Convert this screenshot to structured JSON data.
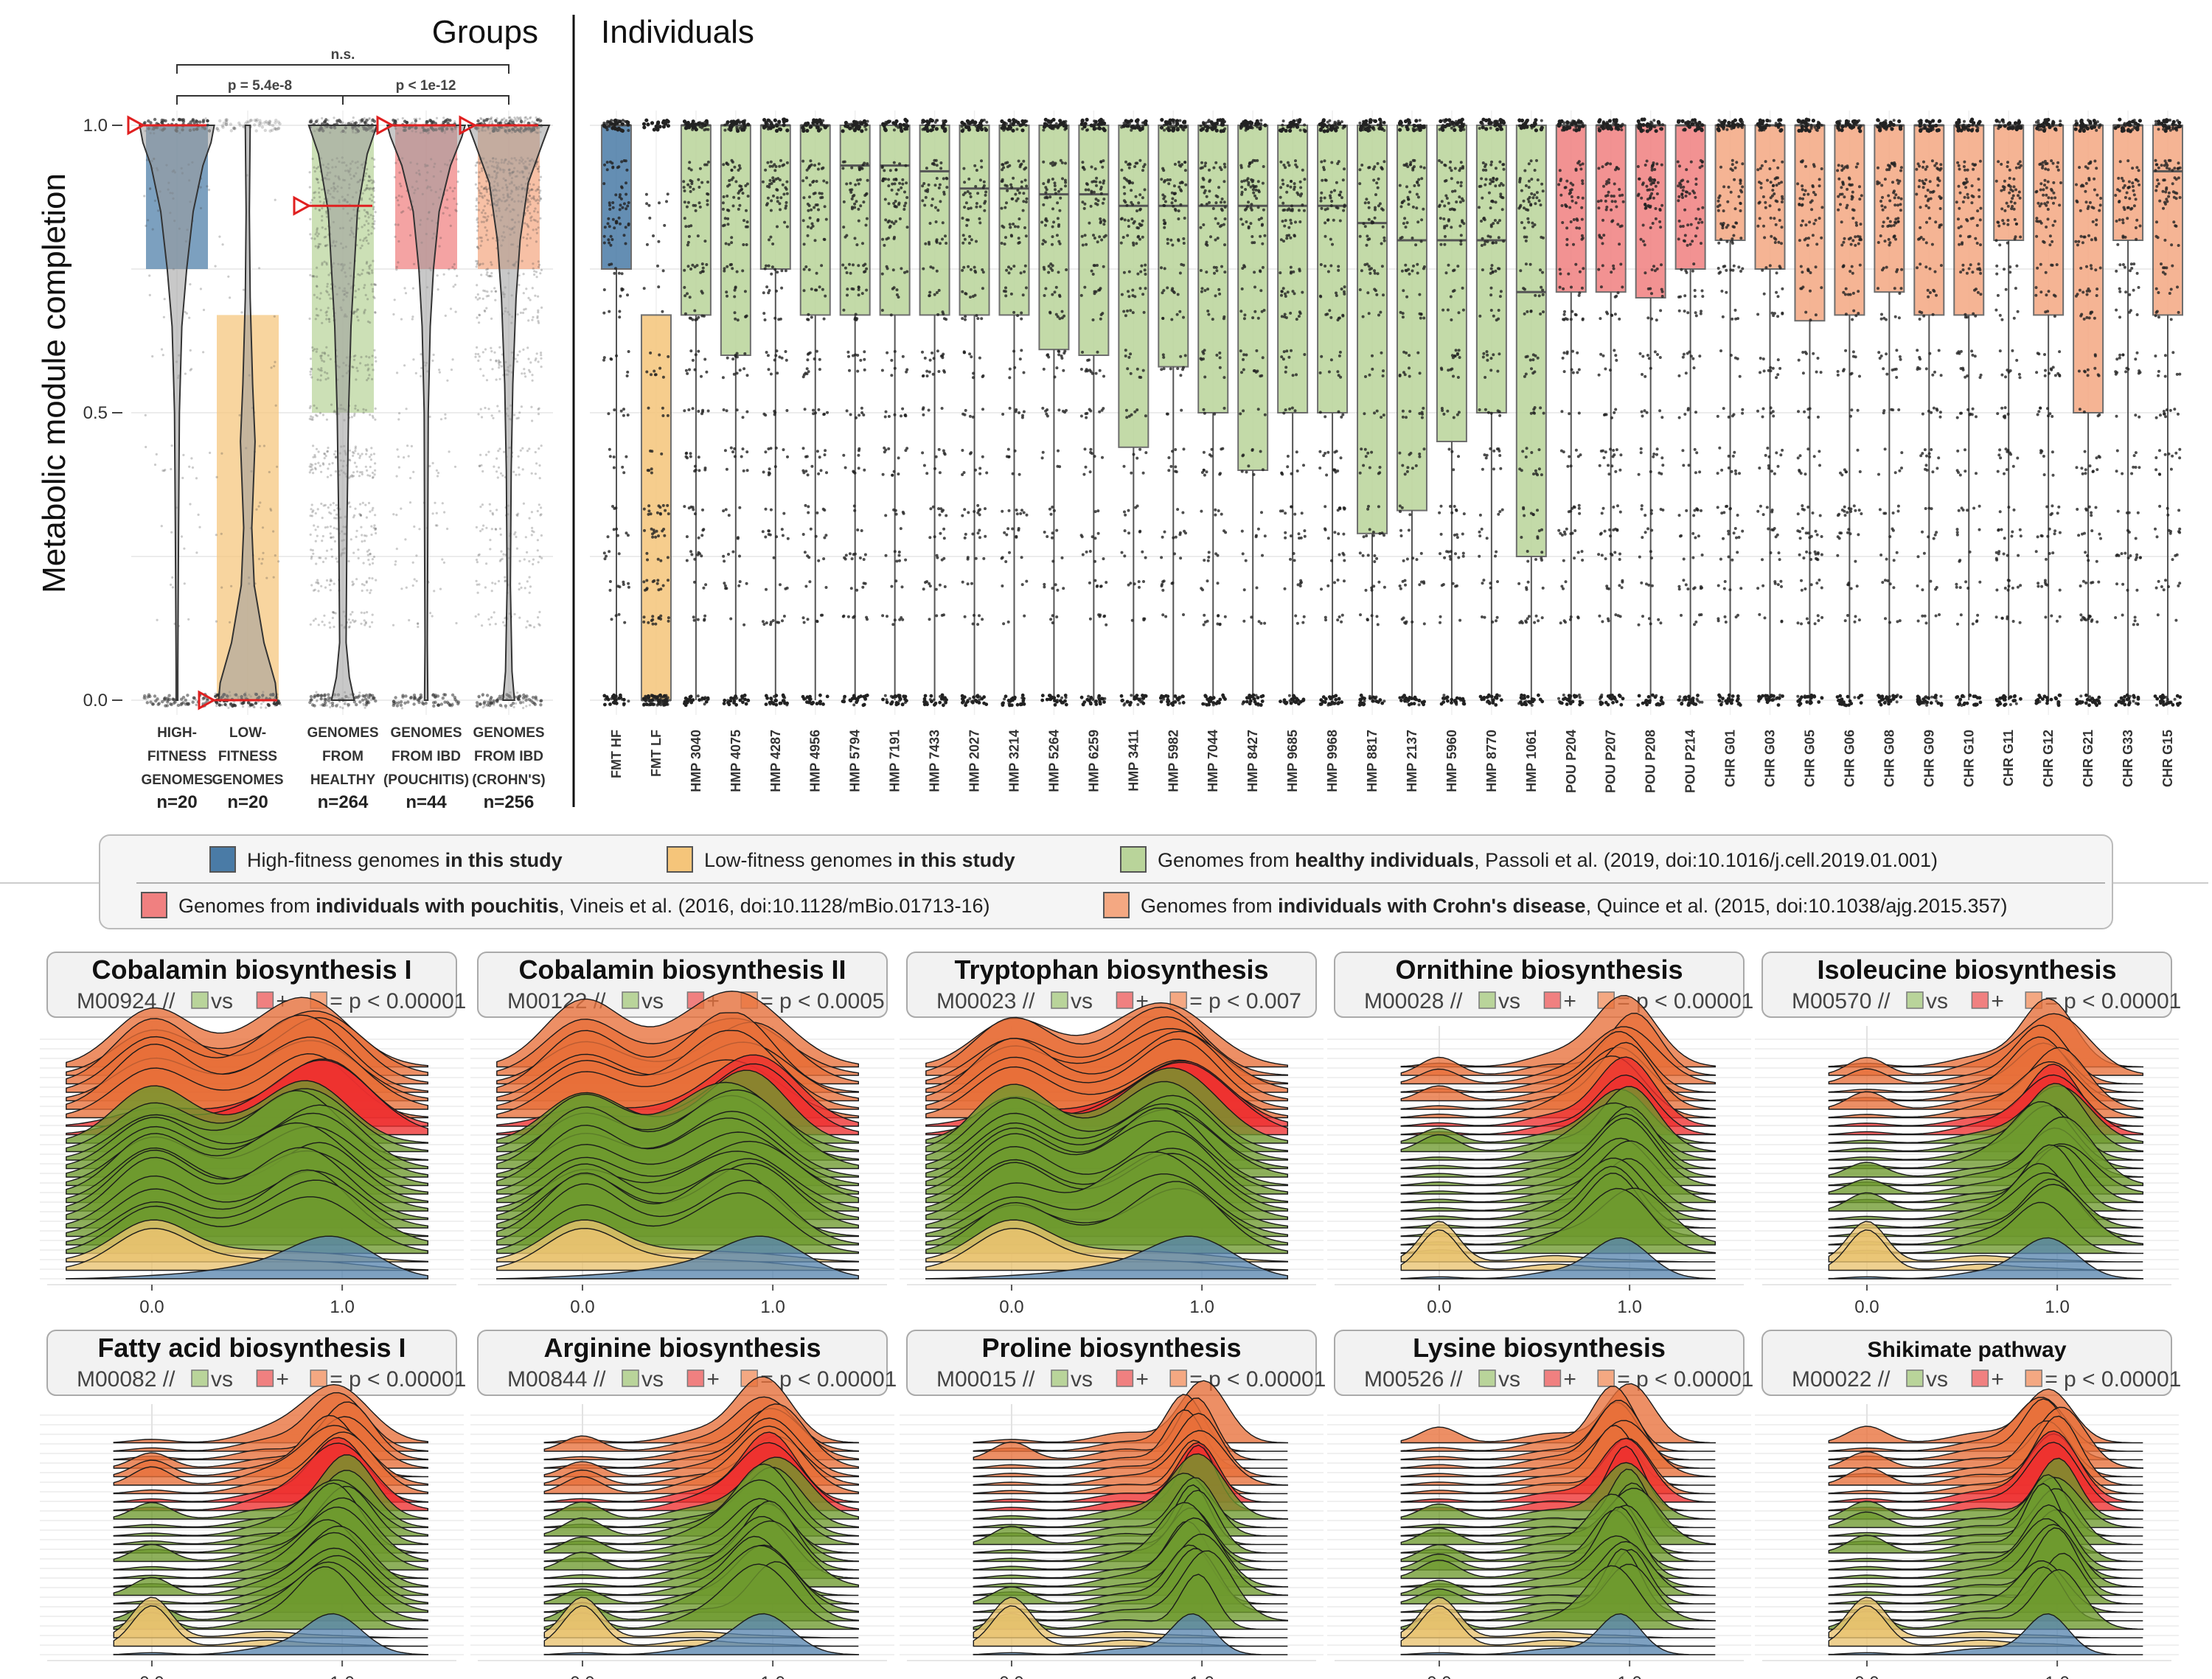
{
  "colors": {
    "hf": "#4a7ba6",
    "lf": "#f5c57a",
    "healthy": "#b9d49a",
    "pouchitis": "#f08080",
    "crohns": "#f4a882",
    "ridge_healthy": "#6e9a2e",
    "ridge_crohns": "#e8703a",
    "ridge_pouch": "#ee3030",
    "ridge_lf": "#e9c36f",
    "ridge_hf": "#5a86b0",
    "median_marker": "#e02020"
  },
  "chart_data": [
    {
      "type": "violin",
      "id": "groups",
      "title": "Groups",
      "ylabel": "Metabolic module completion",
      "ylim": [
        0,
        1
      ],
      "yticks": [
        "0.0",
        "0.5",
        "1.0"
      ],
      "categories": [
        {
          "label": [
            "HIGH-",
            "FITNESS",
            "GENOMES"
          ],
          "n": "n=20",
          "color_key": "hf",
          "box": [
            0.75,
            1.0
          ],
          "median": 1.0
        },
        {
          "label": [
            "LOW-",
            "FITNESS",
            "GENOMES"
          ],
          "n": "n=20",
          "color_key": "lf",
          "box": [
            0.0,
            0.67
          ],
          "median": 0.0
        },
        {
          "label": [
            "GENOMES",
            "FROM",
            "HEALTHY"
          ],
          "n": "n=264",
          "color_key": "healthy",
          "box": [
            0.5,
            1.0
          ],
          "median": 0.86
        },
        {
          "label": [
            "GENOMES",
            "FROM IBD",
            "(POUCHITIS)"
          ],
          "n": "n=44",
          "color_key": "pouchitis",
          "box": [
            0.75,
            1.0
          ],
          "median": 1.0
        },
        {
          "label": [
            "GENOMES",
            "FROM IBD",
            "(CROHN'S)"
          ],
          "n": "n=256",
          "color_key": "crohns",
          "box": [
            0.75,
            1.0
          ],
          "median": 1.0
        }
      ],
      "comparisons": [
        {
          "from": 0,
          "to": 2,
          "label": "p = 5.4e-8",
          "level": 1
        },
        {
          "from": 2,
          "to": 4,
          "label": "p < 1e-12",
          "level": 1
        },
        {
          "from": 0,
          "to": 4,
          "label": "n.s.",
          "level": 2
        }
      ]
    },
    {
      "type": "box",
      "id": "individuals",
      "title": "Individuals",
      "ylim": [
        0,
        1
      ],
      "categories": [
        {
          "name": "FMT HF",
          "g": "hf",
          "q1": 0.75,
          "med": 1.0
        },
        {
          "name": "FMT LF",
          "g": "lf",
          "q1": 0.0,
          "med": 0.0,
          "q3": 0.67
        },
        {
          "name": "HMP 3040",
          "g": "healthy",
          "q1": 0.67,
          "med": 1.0
        },
        {
          "name": "HMP 4075",
          "g": "healthy",
          "q1": 0.6,
          "med": 1.0
        },
        {
          "name": "HMP 4287",
          "g": "healthy",
          "q1": 0.75,
          "med": 1.0
        },
        {
          "name": "HMP 4956",
          "g": "healthy",
          "q1": 0.67,
          "med": 1.0
        },
        {
          "name": "HMP 5794",
          "g": "healthy",
          "q1": 0.67,
          "med": 0.93
        },
        {
          "name": "HMP 7191",
          "g": "healthy",
          "q1": 0.67,
          "med": 0.93
        },
        {
          "name": "HMP 7433",
          "g": "healthy",
          "q1": 0.67,
          "med": 0.92
        },
        {
          "name": "HMP 2027",
          "g": "healthy",
          "q1": 0.67,
          "med": 0.89
        },
        {
          "name": "HMP 3214",
          "g": "healthy",
          "q1": 0.67,
          "med": 0.89
        },
        {
          "name": "HMP 5264",
          "g": "healthy",
          "q1": 0.61,
          "med": 0.88
        },
        {
          "name": "HMP 6259",
          "g": "healthy",
          "q1": 0.6,
          "med": 0.88
        },
        {
          "name": "HMP 3411",
          "g": "healthy",
          "q1": 0.44,
          "med": 0.86
        },
        {
          "name": "HMP 5982",
          "g": "healthy",
          "q1": 0.58,
          "med": 0.86
        },
        {
          "name": "HMP 7044",
          "g": "healthy",
          "q1": 0.5,
          "med": 0.86
        },
        {
          "name": "HMP 8427",
          "g": "healthy",
          "q1": 0.4,
          "med": 0.86
        },
        {
          "name": "HMP 9685",
          "g": "healthy",
          "q1": 0.5,
          "med": 0.86
        },
        {
          "name": "HMP 9968",
          "g": "healthy",
          "q1": 0.5,
          "med": 0.86
        },
        {
          "name": "HMP 8817",
          "g": "healthy",
          "q1": 0.29,
          "med": 0.83
        },
        {
          "name": "HMP 2137",
          "g": "healthy",
          "q1": 0.33,
          "med": 0.8
        },
        {
          "name": "HMP 5960",
          "g": "healthy",
          "q1": 0.45,
          "med": 0.8
        },
        {
          "name": "HMP 8770",
          "g": "healthy",
          "q1": 0.5,
          "med": 0.8
        },
        {
          "name": "HMP 1061",
          "g": "healthy",
          "q1": 0.25,
          "med": 0.71
        },
        {
          "name": "POU P204",
          "g": "pouchitis",
          "q1": 0.71,
          "med": 1.0
        },
        {
          "name": "POU P207",
          "g": "pouchitis",
          "q1": 0.71,
          "med": 1.0
        },
        {
          "name": "POU P208",
          "g": "pouchitis",
          "q1": 0.7,
          "med": 1.0
        },
        {
          "name": "POU P214",
          "g": "pouchitis",
          "q1": 0.75,
          "med": 1.0
        },
        {
          "name": "CHR G01",
          "g": "crohns",
          "q1": 0.8,
          "med": 1.0
        },
        {
          "name": "CHR G03",
          "g": "crohns",
          "q1": 0.75,
          "med": 1.0
        },
        {
          "name": "CHR G05",
          "g": "crohns",
          "q1": 0.66,
          "med": 1.0
        },
        {
          "name": "CHR G06",
          "g": "crohns",
          "q1": 0.67,
          "med": 1.0
        },
        {
          "name": "CHR G08",
          "g": "crohns",
          "q1": 0.71,
          "med": 1.0
        },
        {
          "name": "CHR G09",
          "g": "crohns",
          "q1": 0.67,
          "med": 1.0
        },
        {
          "name": "CHR G10",
          "g": "crohns",
          "q1": 0.67,
          "med": 1.0
        },
        {
          "name": "CHR G11",
          "g": "crohns",
          "q1": 0.8,
          "med": 1.0
        },
        {
          "name": "CHR G12",
          "g": "crohns",
          "q1": 0.67,
          "med": 1.0
        },
        {
          "name": "CHR G21",
          "g": "crohns",
          "q1": 0.5,
          "med": 1.0
        },
        {
          "name": "CHR G33",
          "g": "crohns",
          "q1": 0.8,
          "med": 1.0
        },
        {
          "name": "CHR G15",
          "g": "crohns",
          "q1": 0.67,
          "med": 0.92
        }
      ]
    },
    {
      "type": "ridgeline",
      "id": "ridges",
      "xticks": [
        "0.0",
        "1.0"
      ],
      "panels": [
        {
          "title": "Cobalamin biosynthesis I",
          "module": "M00924",
          "p": "p < 0.00001",
          "title_small": false
        },
        {
          "title": "Cobalamin biosynthesis II",
          "module": "M00122",
          "p": "p < 0.0005",
          "title_small": false
        },
        {
          "title": "Tryptophan biosynthesis",
          "module": "M00023",
          "p": "p < 0.007",
          "title_small": false
        },
        {
          "title": "Ornithine biosynthesis",
          "module": "M00028",
          "p": "p < 0.00001",
          "title_small": false
        },
        {
          "title": "Isoleucine biosynthesis",
          "module": "M00570",
          "p": "p < 0.00001",
          "title_small": false
        },
        {
          "title": "Fatty acid biosynthesis I",
          "module": "M00082",
          "p": "p < 0.00001",
          "title_small": false
        },
        {
          "title": "Arginine biosynthesis",
          "module": "M00844",
          "p": "p < 0.00001",
          "title_small": false
        },
        {
          "title": "Proline biosynthesis",
          "module": "M00015",
          "p": "p < 0.00001",
          "title_small": false
        },
        {
          "title": "Lysine biosynthesis",
          "module": "M00526",
          "p": "p < 0.00001",
          "title_small": false
        },
        {
          "title": "Shikimate pathway",
          "module": "M00022",
          "p": "p < 0.00001",
          "title_small": true
        }
      ]
    }
  ],
  "legend": {
    "items": [
      {
        "color_key": "hf",
        "parts": [
          [
            "High-fitness genomes ",
            false
          ],
          [
            "in this study",
            true
          ]
        ]
      },
      {
        "color_key": "lf",
        "parts": [
          [
            "Low-fitness genomes ",
            false
          ],
          [
            "in this study",
            true
          ]
        ]
      },
      {
        "color_key": "healthy",
        "parts": [
          [
            "Genomes from ",
            false
          ],
          [
            "healthy individuals",
            true
          ],
          [
            ", Passoli et al. (2019, doi:10.1016/j.cell.2019.01.001)",
            false
          ]
        ]
      },
      {
        "color_key": "pouchitis",
        "parts": [
          [
            "Genomes from ",
            false
          ],
          [
            "individuals with pouchitis",
            true
          ],
          [
            ", Vineis et al. (2016, doi:10.1128/mBio.01713-16)",
            false
          ]
        ]
      },
      {
        "color_key": "crohns",
        "parts": [
          [
            "Genomes from ",
            false
          ],
          [
            "individuals with Crohn's disease",
            true
          ],
          [
            ", Quince et al. (2015, doi:10.1038/ajg.2015.357)",
            false
          ]
        ]
      }
    ]
  },
  "subtitle_tokens": {
    "sep": "//",
    "vs": "vs",
    "plus": "+",
    "eq": "="
  }
}
